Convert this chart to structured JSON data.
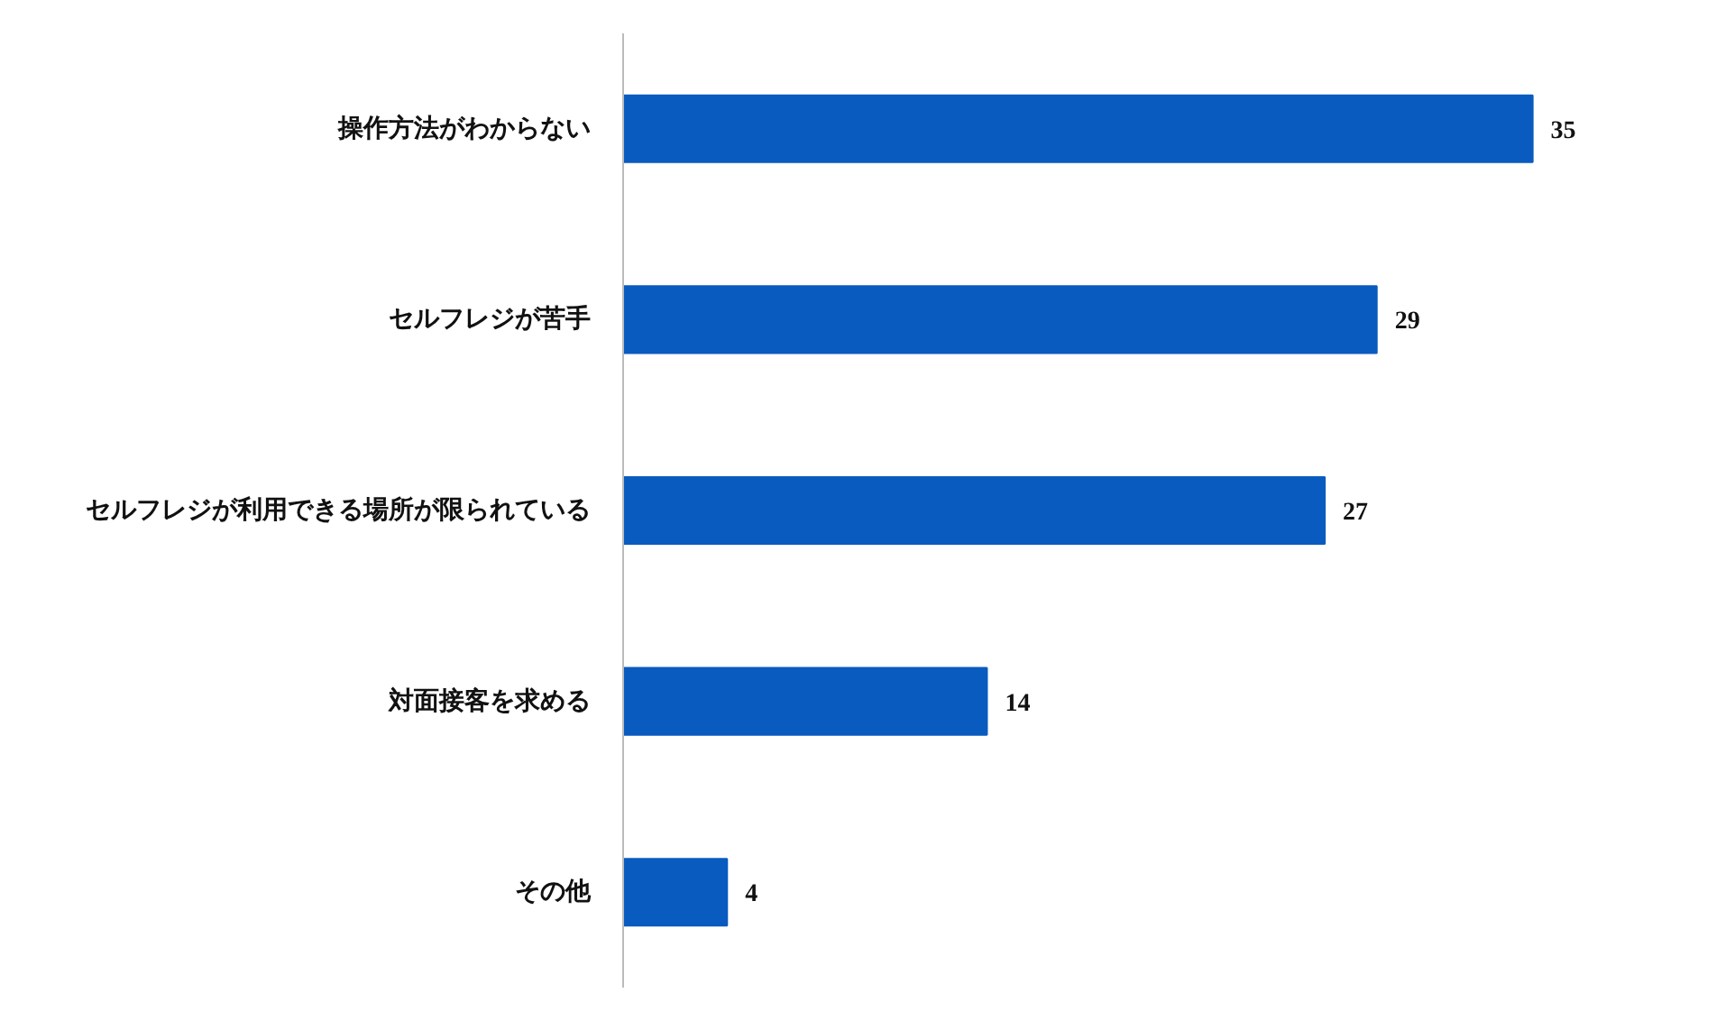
{
  "chart_data": {
    "type": "bar",
    "orientation": "horizontal",
    "categories": [
      "操作方法がわからない",
      "セルフレジが苦手",
      "セルフレジが利用できる場所が限られている",
      "対面接客を求める",
      "その他"
    ],
    "values": [
      35,
      29,
      27,
      14,
      4
    ],
    "color": "#0a5bbf",
    "data_labels": true,
    "tick_labels": "y"
  }
}
